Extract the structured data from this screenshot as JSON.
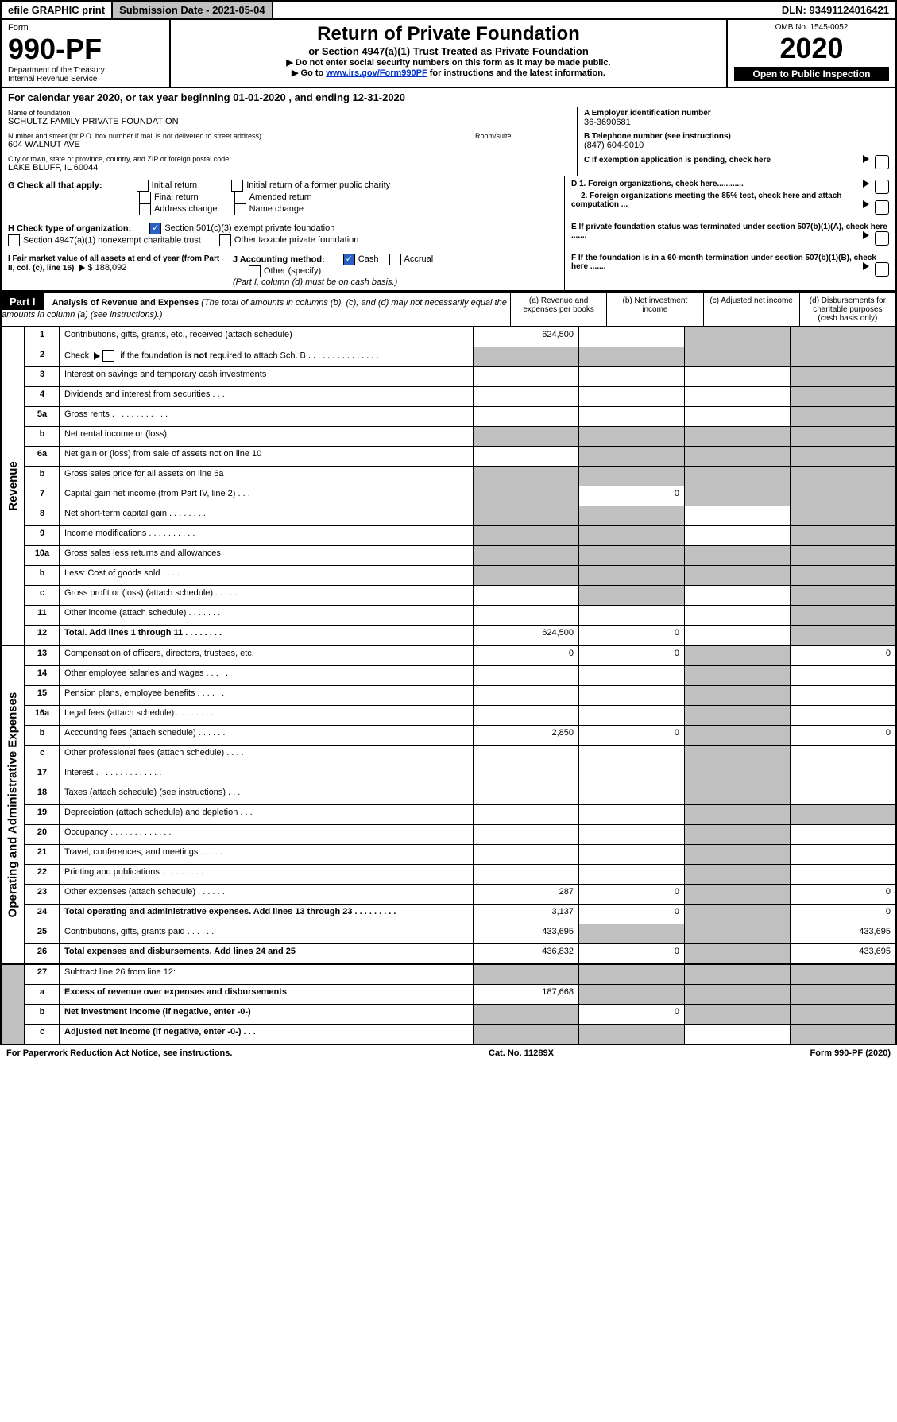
{
  "topbar": {
    "efile": "efile GRAPHIC print",
    "submission_label": "Submission Date - 2021-05-04",
    "dln_label": "DLN: 93491124016421"
  },
  "header": {
    "form_word": "Form",
    "form_no": "990-PF",
    "dept": "Department of the Treasury",
    "irs": "Internal Revenue Service",
    "title": "Return of Private Foundation",
    "subtitle": "or Section 4947(a)(1) Trust Treated as Private Foundation",
    "notice1": "▶ Do not enter social security numbers on this form as it may be made public.",
    "notice2_pre": "▶ Go to ",
    "notice2_link": "www.irs.gov/Form990PF",
    "notice2_post": " for instructions and the latest information.",
    "omb": "OMB No. 1545-0052",
    "year": "2020",
    "open": "Open to Public Inspection"
  },
  "cal": {
    "text_pre": "For calendar year 2020, or tax year beginning ",
    "begin": "01-01-2020",
    "mid": " , and ending ",
    "end": "12-31-2020"
  },
  "name_block": {
    "label": "Name of foundation",
    "value": "SCHULTZ FAMILY PRIVATE FOUNDATION",
    "addr_label": "Number and street (or P.O. box number if mail is not delivered to street address)",
    "room_label": "Room/suite",
    "addr": "604 WALNUT AVE",
    "city_label": "City or town, state or province, country, and ZIP or foreign postal code",
    "city": "LAKE BLUFF, IL  60044"
  },
  "right_block": {
    "a_label": "A Employer identification number",
    "a_val": "36-3690681",
    "b_label": "B Telephone number (see instructions)",
    "b_val": "(847) 604-9010",
    "c_label": "C If exemption application is pending, check here",
    "d1": "D 1. Foreign organizations, check here............",
    "d2": "2. Foreign organizations meeting the 85% test, check here and attach computation ...",
    "e": "E  If private foundation status was terminated under section 507(b)(1)(A), check here .......",
    "f": "F  If the foundation is in a 60-month termination under section 507(b)(1)(B), check here ......."
  },
  "g": {
    "label": "G Check all that apply:",
    "opts": [
      "Initial return",
      "Final return",
      "Address change",
      "Initial return of a former public charity",
      "Amended return",
      "Name change"
    ]
  },
  "h": {
    "label": "H Check type of organization:",
    "opt1": "Section 501(c)(3) exempt private foundation",
    "opt2": "Section 4947(a)(1) nonexempt charitable trust",
    "opt3": "Other taxable private foundation"
  },
  "i": {
    "label": "I Fair market value of all assets at end of year (from Part II, col. (c), line 16)",
    "val": "188,092"
  },
  "j": {
    "label": "J Accounting method:",
    "cash": "Cash",
    "accrual": "Accrual",
    "other": "Other (specify)",
    "note": "(Part I, column (d) must be on cash basis.)"
  },
  "part1": {
    "label": "Part I",
    "title": "Analysis of Revenue and Expenses",
    "note": "(The total of amounts in columns (b), (c), and (d) may not necessarily equal the amounts in column (a) (see instructions).)",
    "cols": {
      "a": "(a) Revenue and expenses per books",
      "b": "(b) Net investment income",
      "c": "(c) Adjusted net income",
      "d": "(d) Disbursements for charitable purposes (cash basis only)"
    }
  },
  "sections": {
    "revenue": "Revenue",
    "expenses": "Operating and Administrative Expenses"
  },
  "rows": [
    {
      "n": "1",
      "d": "Contributions, gifts, grants, etc., received (attach schedule)",
      "a": "624,500",
      "b": "",
      "c": "grey",
      "dcol": "grey"
    },
    {
      "n": "2",
      "d": "Check ▶ ☐ if the foundation is not required to attach Sch. B",
      "a": "grey",
      "b": "grey",
      "c": "grey",
      "dcol": "grey",
      "special": "check"
    },
    {
      "n": "3",
      "d": "Interest on savings and temporary cash investments",
      "a": "",
      "b": "",
      "c": "",
      "dcol": "grey"
    },
    {
      "n": "4",
      "d": "Dividends and interest from securities   .   .   .",
      "a": "",
      "b": "",
      "c": "",
      "dcol": "grey"
    },
    {
      "n": "5a",
      "d": "Gross rents   .   .   .   .   .   .   .   .   .   .   .   .",
      "a": "",
      "b": "",
      "c": "",
      "dcol": "grey"
    },
    {
      "n": "b",
      "d": "Net rental income or (loss)",
      "a": "grey",
      "b": "grey",
      "c": "grey",
      "dcol": "grey"
    },
    {
      "n": "6a",
      "d": "Net gain or (loss) from sale of assets not on line 10",
      "a": "",
      "b": "grey",
      "c": "grey",
      "dcol": "grey"
    },
    {
      "n": "b",
      "d": "Gross sales price for all assets on line 6a",
      "a": "grey",
      "b": "grey",
      "c": "grey",
      "dcol": "grey"
    },
    {
      "n": "7",
      "d": "Capital gain net income (from Part IV, line 2)   .   .   .",
      "a": "grey",
      "b": "0",
      "c": "grey",
      "dcol": "grey"
    },
    {
      "n": "8",
      "d": "Net short-term capital gain   .   .   .   .   .   .   .   .",
      "a": "grey",
      "b": "grey",
      "c": "",
      "dcol": "grey"
    },
    {
      "n": "9",
      "d": "Income modifications   .   .   .   .   .   .   .   .   .   .",
      "a": "grey",
      "b": "grey",
      "c": "",
      "dcol": "grey"
    },
    {
      "n": "10a",
      "d": "Gross sales less returns and allowances",
      "a": "grey",
      "b": "grey",
      "c": "grey",
      "dcol": "grey"
    },
    {
      "n": "b",
      "d": "Less: Cost of goods sold   .   .   .   .",
      "a": "grey",
      "b": "grey",
      "c": "grey",
      "dcol": "grey"
    },
    {
      "n": "c",
      "d": "Gross profit or (loss) (attach schedule)   .   .   .   .   .",
      "a": "",
      "b": "grey",
      "c": "",
      "dcol": "grey"
    },
    {
      "n": "11",
      "d": "Other income (attach schedule)   .   .   .   .   .   .   .",
      "a": "",
      "b": "",
      "c": "",
      "dcol": "grey"
    },
    {
      "n": "12",
      "d": "Total. Add lines 1 through 11   .   .   .   .   .   .   .   .",
      "a": "624,500",
      "b": "0",
      "c": "",
      "dcol": "grey",
      "bold": true
    }
  ],
  "exp_rows": [
    {
      "n": "13",
      "d": "Compensation of officers, directors, trustees, etc.",
      "a": "0",
      "b": "0",
      "c": "grey",
      "dcol": "0"
    },
    {
      "n": "14",
      "d": "Other employee salaries and wages   .   .   .   .   .",
      "a": "",
      "b": "",
      "c": "grey",
      "dcol": ""
    },
    {
      "n": "15",
      "d": "Pension plans, employee benefits   .   .   .   .   .   .",
      "a": "",
      "b": "",
      "c": "grey",
      "dcol": ""
    },
    {
      "n": "16a",
      "d": "Legal fees (attach schedule)   .   .   .   .   .   .   .   .",
      "a": "",
      "b": "",
      "c": "grey",
      "dcol": ""
    },
    {
      "n": "b",
      "d": "Accounting fees (attach schedule)   .   .   .   .   .   .",
      "a": "2,850",
      "b": "0",
      "c": "grey",
      "dcol": "0"
    },
    {
      "n": "c",
      "d": "Other professional fees (attach schedule)   .   .   .   .",
      "a": "",
      "b": "",
      "c": "grey",
      "dcol": ""
    },
    {
      "n": "17",
      "d": "Interest   .   .   .   .   .   .   .   .   .   .   .   .   .   .",
      "a": "",
      "b": "",
      "c": "grey",
      "dcol": ""
    },
    {
      "n": "18",
      "d": "Taxes (attach schedule) (see instructions)   .   .   .",
      "a": "",
      "b": "",
      "c": "grey",
      "dcol": ""
    },
    {
      "n": "19",
      "d": "Depreciation (attach schedule) and depletion   .   .   .",
      "a": "",
      "b": "",
      "c": "grey",
      "dcol": "grey"
    },
    {
      "n": "20",
      "d": "Occupancy   .   .   .   .   .   .   .   .   .   .   .   .   .",
      "a": "",
      "b": "",
      "c": "grey",
      "dcol": ""
    },
    {
      "n": "21",
      "d": "Travel, conferences, and meetings   .   .   .   .   .   .",
      "a": "",
      "b": "",
      "c": "grey",
      "dcol": ""
    },
    {
      "n": "22",
      "d": "Printing and publications   .   .   .   .   .   .   .   .   .",
      "a": "",
      "b": "",
      "c": "grey",
      "dcol": ""
    },
    {
      "n": "23",
      "d": "Other expenses (attach schedule)   .   .   .   .   .   .",
      "a": "287",
      "b": "0",
      "c": "grey",
      "dcol": "0"
    },
    {
      "n": "24",
      "d": "Total operating and administrative expenses. Add lines 13 through 23   .   .   .   .   .   .   .   .   .",
      "a": "3,137",
      "b": "0",
      "c": "grey",
      "dcol": "0",
      "bold": true
    },
    {
      "n": "25",
      "d": "Contributions, gifts, grants paid   .   .   .   .   .   .",
      "a": "433,695",
      "b": "grey",
      "c": "grey",
      "dcol": "433,695"
    },
    {
      "n": "26",
      "d": "Total expenses and disbursements. Add lines 24 and 25",
      "a": "436,832",
      "b": "0",
      "c": "grey",
      "dcol": "433,695",
      "bold": true
    }
  ],
  "bottom_rows": [
    {
      "n": "27",
      "d": "Subtract line 26 from line 12:",
      "a": "grey",
      "b": "grey",
      "c": "grey",
      "dcol": "grey"
    },
    {
      "n": "a",
      "d": "Excess of revenue over expenses and disbursements",
      "a": "187,668",
      "b": "grey",
      "c": "grey",
      "dcol": "grey",
      "bold": true
    },
    {
      "n": "b",
      "d": "Net investment income (if negative, enter -0-)",
      "a": "grey",
      "b": "0",
      "c": "grey",
      "dcol": "grey",
      "bold": true
    },
    {
      "n": "c",
      "d": "Adjusted net income (if negative, enter -0-)   .   .   .",
      "a": "grey",
      "b": "grey",
      "c": "",
      "dcol": "grey",
      "bold": true
    }
  ],
  "footer": {
    "left": "For Paperwork Reduction Act Notice, see instructions.",
    "mid": "Cat. No. 11289X",
    "right": "Form 990-PF (2020)"
  }
}
